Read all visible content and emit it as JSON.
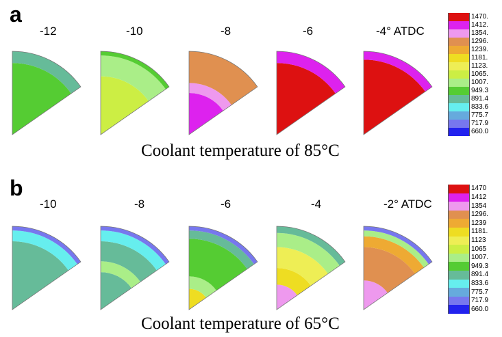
{
  "panels": [
    {
      "letter": "a",
      "crank_angles": [
        "-12",
        "-10",
        "-8",
        "-6",
        "-4° ATDC"
      ],
      "caption": "Coolant temperature of 85°C",
      "legend": {
        "labels": [
          "1470.",
          "1412.",
          "1354.",
          "1296.",
          "1239.",
          "1181.",
          "1123.",
          "1065.",
          "1007.",
          "949.3",
          "891.4",
          "833.6",
          "775.7",
          "717.9",
          "660.0"
        ]
      }
    },
    {
      "letter": "b",
      "crank_angles": [
        "-10",
        "-8",
        "-6",
        "-4",
        "-2° ATDC"
      ],
      "caption": "Coolant temperature of 65°C",
      "legend": {
        "labels": [
          "1470",
          "1412",
          "1354",
          "1296.",
          "1239",
          "1181.",
          "1123",
          "1065",
          "1007.",
          "949.3",
          "891.4",
          "833.6",
          "775.7",
          "717.9",
          "660.0"
        ]
      }
    }
  ],
  "colors": [
    "#dd1111",
    "#dd22ee",
    "#ee99ee",
    "#e09050",
    "#eeaa33",
    "#eedd22",
    "#eeee55",
    "#ccee44",
    "#aaee88",
    "#55cc33",
    "#66bb99",
    "#66eeee",
    "#66aadd",
    "#7777ee",
    "#2222ee"
  ]
}
